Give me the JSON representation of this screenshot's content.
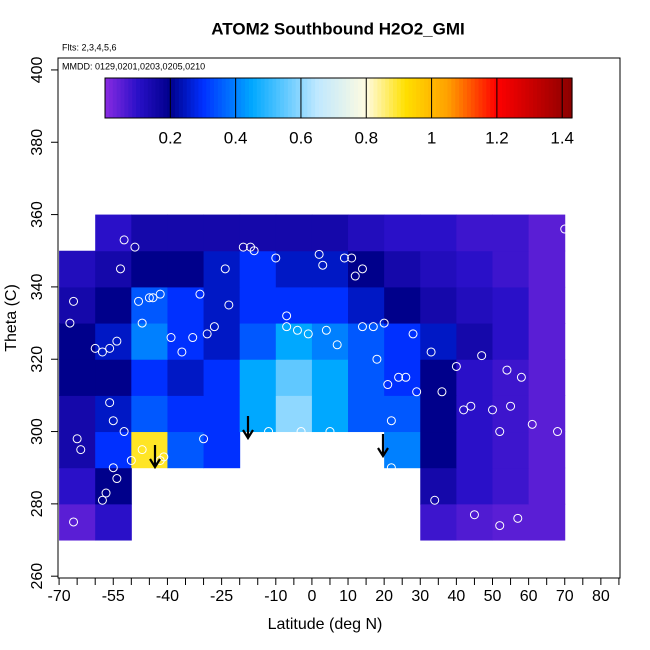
{
  "chart_data": {
    "type": "heatmap",
    "title": "ATOM2 Southbound H2O2_GMI",
    "annotations": [
      "Flts: 2,3,4,5,6",
      "MMDD: 0129,0201,0203,0205,0210"
    ],
    "xlabel": "Latitude (deg N)",
    "ylabel": "Theta (C)",
    "xlim": [
      -70.3,
      85.3
    ],
    "ylim": [
      259.5,
      403.3
    ],
    "xticks": [
      -70,
      -55,
      -40,
      -25,
      -10,
      0,
      10,
      20,
      30,
      40,
      50,
      60,
      70,
      80
    ],
    "xminorticks": [
      -65,
      -60,
      -50,
      -45,
      -35,
      -30,
      -20,
      -15,
      -5,
      5,
      15,
      25,
      35,
      45,
      55,
      65,
      75,
      85
    ],
    "yticks": [
      260,
      280,
      300,
      320,
      340,
      360,
      380,
      400
    ],
    "x_bins": [
      -70,
      -60,
      -50,
      -40,
      -30,
      -20,
      -10,
      0,
      10,
      20,
      30,
      40,
      50,
      60,
      70
    ],
    "y_bins": [
      270,
      280,
      290,
      300,
      310,
      320,
      330,
      340,
      350,
      360
    ],
    "z": [
      [
        0.05,
        0.1,
        null,
        null,
        null,
        null,
        null,
        null,
        null,
        null,
        0.08,
        0.06,
        0.05,
        0.05
      ],
      [
        0.1,
        0.2,
        null,
        null,
        null,
        null,
        null,
        null,
        null,
        null,
        0.15,
        0.1,
        0.08,
        0.05
      ],
      [
        0.15,
        0.3,
        0.9,
        0.35,
        0.3,
        null,
        null,
        null,
        null,
        0.4,
        0.2,
        0.1,
        0.08,
        0.05
      ],
      [
        0.15,
        0.25,
        0.35,
        0.3,
        0.3,
        0.45,
        0.6,
        0.45,
        0.35,
        0.35,
        0.2,
        0.1,
        0.08,
        0.05
      ],
      [
        0.2,
        0.2,
        0.3,
        0.25,
        0.3,
        0.45,
        0.55,
        0.45,
        0.35,
        0.3,
        0.2,
        0.1,
        0.08,
        0.05
      ],
      [
        0.2,
        0.25,
        0.4,
        0.3,
        0.25,
        0.35,
        0.45,
        0.4,
        0.35,
        0.3,
        0.25,
        0.15,
        0.1,
        0.05
      ],
      [
        0.15,
        0.2,
        0.35,
        0.3,
        0.25,
        0.3,
        0.3,
        0.3,
        0.25,
        0.2,
        0.15,
        0.12,
        0.1,
        0.05
      ],
      [
        0.12,
        0.15,
        0.2,
        0.2,
        0.25,
        0.3,
        0.25,
        0.25,
        0.2,
        0.15,
        0.12,
        0.1,
        0.08,
        0.05
      ],
      [
        null,
        0.1,
        0.15,
        0.15,
        0.15,
        0.15,
        0.15,
        0.15,
        0.12,
        0.1,
        0.1,
        0.08,
        0.08,
        0.05
      ]
    ],
    "colorbar": {
      "lim": [
        0,
        1.43
      ],
      "ticks": [
        0.2,
        0.4,
        0.6,
        0.8,
        1.0,
        1.2,
        1.4
      ],
      "colorscale": [
        [
          0,
          "#8a2be2"
        ],
        [
          0.1,
          "#2a10c8"
        ],
        [
          0.2,
          "#00008b"
        ],
        [
          0.3,
          "#0030ff"
        ],
        [
          0.45,
          "#00a8ff"
        ],
        [
          0.65,
          "#bfe8ff"
        ],
        [
          0.8,
          "#fffbe0"
        ],
        [
          0.92,
          "#ffe000"
        ],
        [
          1.05,
          "#ffa000"
        ],
        [
          1.2,
          "#ff0000"
        ],
        [
          1.43,
          "#8b0000"
        ]
      ]
    },
    "points": {
      "x": [
        -67,
        -66,
        -65,
        -64,
        -60,
        -58,
        -56,
        -54,
        -53,
        -52,
        -49,
        -48,
        -47,
        -45,
        -44,
        -42,
        -39,
        -36,
        -33,
        -31,
        -29,
        -27,
        -24,
        -23,
        -19,
        -17,
        -16,
        -10,
        -7,
        -7,
        -4,
        -1,
        2,
        3,
        4,
        7,
        9,
        11,
        12,
        14,
        14,
        17,
        18,
        20,
        21,
        22,
        24,
        26,
        28,
        29,
        33,
        36,
        40,
        42,
        44,
        47,
        50,
        52,
        54,
        55,
        58,
        61,
        68,
        70,
        -56,
        -55,
        -55,
        -52,
        -50,
        -47,
        -58,
        -57,
        -54,
        -42,
        -30,
        -12,
        -3,
        5,
        15,
        17,
        22,
        27,
        34,
        45,
        52,
        57,
        -66,
        -41
      ],
      "y": [
        330,
        336,
        298,
        295,
        323,
        322,
        323,
        325,
        345,
        353,
        351,
        336,
        330,
        337,
        337,
        338,
        326,
        322,
        326,
        338,
        327,
        329,
        345,
        335,
        351,
        351,
        350,
        348,
        332,
        329,
        328,
        327,
        349,
        346,
        328,
        324,
        348,
        348,
        343,
        345,
        329,
        329,
        320,
        330,
        313,
        303,
        315,
        315,
        327,
        311,
        322,
        311,
        318,
        306,
        307,
        321,
        306,
        300,
        317,
        307,
        315,
        302,
        300,
        356,
        308,
        303,
        290,
        300,
        292,
        295,
        281,
        283,
        287,
        292,
        298,
        300,
        300,
        300,
        298,
        297,
        290,
        282,
        281,
        277,
        274,
        276,
        275,
        293
      ]
    }
  }
}
